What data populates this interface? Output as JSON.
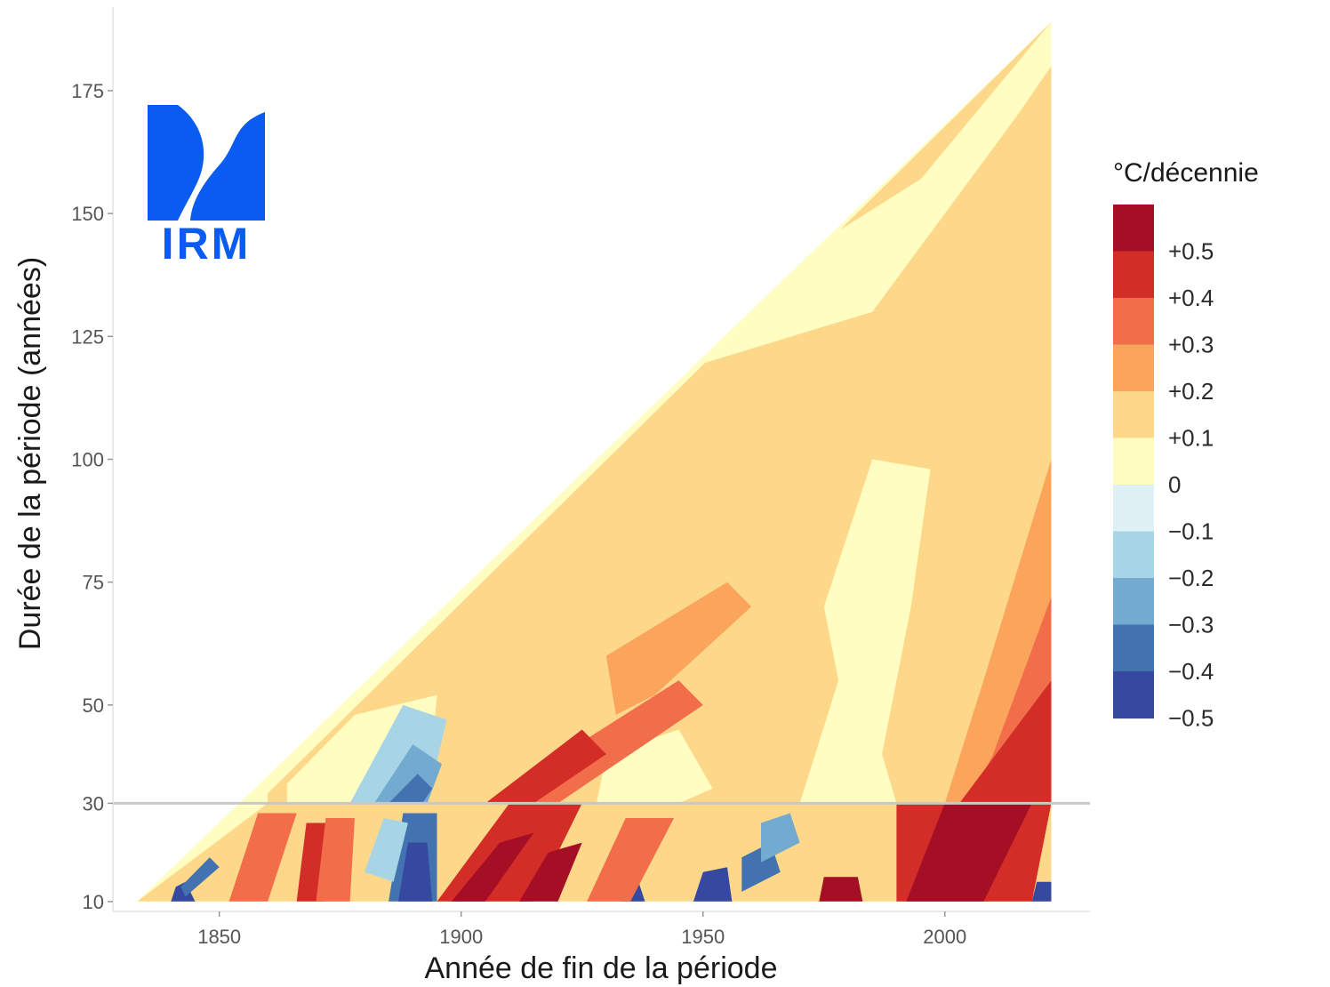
{
  "chart_data": {
    "type": "heatmap",
    "title": "",
    "xlabel": "Année de fin de la période",
    "ylabel": "Durée de la période (années)",
    "xlim": [
      1828,
      2030
    ],
    "ylim": [
      8,
      192
    ],
    "x_ticks": [
      1850,
      1900,
      1950,
      2000
    ],
    "y_ticks": [
      10,
      30,
      50,
      75,
      100,
      125,
      150,
      175
    ],
    "grid": false,
    "data_extent": {
      "first_start_year": 1833,
      "last_end_year": 2022,
      "min_duration": 10,
      "max_duration": 189
    },
    "reference_line": {
      "duration": 30,
      "color": "#c8c8c8"
    },
    "logo": {
      "text": "IRM",
      "color": "#0a5cf0",
      "placement": "top-left"
    },
    "legend": {
      "title": "°C/décennie",
      "placement": "right",
      "labels": [
        "+0.5",
        "+0.4",
        "+0.3",
        "+0.2",
        "+0.1",
        "0",
        "−0.1",
        "−0.2",
        "−0.3",
        "−0.4",
        "−0.5"
      ],
      "colors": [
        "#a50f26",
        "#d32d27",
        "#f26d4a",
        "#fba45c",
        "#fed88a",
        "#fffdc2",
        "#dff1f5",
        "#a7d5e5",
        "#73aacf",
        "#4372b1",
        "#3549a0"
      ]
    },
    "bands": [
      {
        "class": 4,
        "coords": [
          [
            1860,
            32
          ],
          [
            2022,
            189
          ],
          [
            2022,
            30
          ],
          [
            1860,
            30
          ]
        ]
      },
      {
        "class": 5,
        "coords": [
          [
            1935,
            115
          ],
          [
            1985,
            130
          ],
          [
            2015,
            170
          ],
          [
            2022,
            180
          ],
          [
            2022,
            189
          ],
          [
            1995,
            157
          ],
          [
            1940,
            123
          ]
        ]
      },
      {
        "class": 5,
        "coords": [
          [
            1985,
            100
          ],
          [
            1997,
            98
          ],
          [
            1993,
            70
          ],
          [
            1987,
            40
          ],
          [
            1990,
            30
          ],
          [
            1970,
            30
          ],
          [
            1978,
            55
          ],
          [
            1975,
            70
          ]
        ]
      },
      {
        "class": 5,
        "coords": [
          [
            1930,
            40
          ],
          [
            1945,
            45
          ],
          [
            1952,
            33
          ],
          [
            1945,
            30
          ],
          [
            1928,
            30
          ]
        ]
      },
      {
        "class": 5,
        "coords": [
          [
            1864,
            34
          ],
          [
            1878,
            48
          ],
          [
            1895,
            52
          ],
          [
            1893,
            30
          ],
          [
            1864,
            30
          ]
        ]
      },
      {
        "class": 3,
        "coords": [
          [
            1930,
            60
          ],
          [
            1955,
            75
          ],
          [
            1960,
            70
          ],
          [
            1940,
            52
          ],
          [
            1932,
            48
          ]
        ]
      },
      {
        "class": 3,
        "coords": [
          [
            2008,
            55
          ],
          [
            2022,
            100
          ],
          [
            2022,
            30
          ],
          [
            2000,
            30
          ]
        ]
      },
      {
        "class": 2,
        "coords": [
          [
            2010,
            40
          ],
          [
            2022,
            72
          ],
          [
            2022,
            30
          ],
          [
            2005,
            30
          ]
        ]
      },
      {
        "class": 2,
        "coords": [
          [
            1905,
            30
          ],
          [
            1945,
            55
          ],
          [
            1950,
            50
          ],
          [
            1920,
            30
          ]
        ]
      },
      {
        "class": 1,
        "coords": [
          [
            2003,
            30
          ],
          [
            2022,
            55
          ],
          [
            2022,
            30
          ]
        ]
      },
      {
        "class": 1,
        "coords": [
          [
            1905,
            30
          ],
          [
            1925,
            45
          ],
          [
            1930,
            40
          ],
          [
            1915,
            30
          ]
        ]
      },
      {
        "class": 7,
        "coords": [
          [
            1877,
            30
          ],
          [
            1888,
            50
          ],
          [
            1897,
            47
          ],
          [
            1893,
            30
          ]
        ]
      },
      {
        "class": 8,
        "coords": [
          [
            1882,
            30
          ],
          [
            1890,
            42
          ],
          [
            1896,
            38
          ],
          [
            1893,
            30
          ]
        ]
      },
      {
        "class": 9,
        "coords": [
          [
            1885,
            30
          ],
          [
            1891,
            36
          ],
          [
            1894,
            33
          ],
          [
            1892,
            30
          ]
        ]
      },
      {
        "class": 6,
        "coords": [
          [
            1925,
            30
          ],
          [
            1942,
            30
          ],
          [
            1935,
            20
          ],
          [
            1930,
            16
          ]
        ]
      },
      {
        "class": 6,
        "coords": [
          [
            1968,
            30
          ],
          [
            1985,
            30
          ],
          [
            1980,
            18
          ],
          [
            1975,
            16
          ]
        ]
      },
      {
        "class": 4,
        "coords": [
          [
            1833,
            10
          ],
          [
            2022,
            10
          ],
          [
            2022,
            30
          ],
          [
            1860,
            30
          ]
        ]
      },
      {
        "class": 1,
        "coords": [
          [
            1895,
            10
          ],
          [
            1915,
            10
          ],
          [
            1925,
            30
          ],
          [
            1910,
            30
          ]
        ]
      },
      {
        "class": 0,
        "coords": [
          [
            1898,
            10
          ],
          [
            1905,
            10
          ],
          [
            1915,
            24
          ],
          [
            1908,
            22
          ]
        ]
      },
      {
        "class": 0,
        "coords": [
          [
            1912,
            10
          ],
          [
            1920,
            10
          ],
          [
            1925,
            22
          ],
          [
            1918,
            20
          ]
        ]
      },
      {
        "class": 1,
        "coords": [
          [
            1990,
            10
          ],
          [
            2018,
            10
          ],
          [
            2022,
            30
          ],
          [
            1990,
            30
          ]
        ]
      },
      {
        "class": 0,
        "coords": [
          [
            1992,
            10
          ],
          [
            2008,
            10
          ],
          [
            2018,
            30
          ],
          [
            2000,
            30
          ]
        ]
      },
      {
        "class": 9,
        "coords": [
          [
            1885,
            10
          ],
          [
            1895,
            10
          ],
          [
            1895,
            28
          ],
          [
            1888,
            28
          ]
        ]
      },
      {
        "class": 10,
        "coords": [
          [
            1887,
            10
          ],
          [
            1894,
            10
          ],
          [
            1893,
            22
          ],
          [
            1889,
            22
          ]
        ]
      },
      {
        "class": 7,
        "coords": [
          [
            1880,
            16
          ],
          [
            1886,
            14
          ],
          [
            1889,
            26
          ],
          [
            1884,
            27
          ]
        ]
      },
      {
        "class": 10,
        "coords": [
          [
            1948,
            10
          ],
          [
            1956,
            10
          ],
          [
            1955,
            17
          ],
          [
            1950,
            16
          ]
        ]
      },
      {
        "class": 9,
        "coords": [
          [
            1958,
            12
          ],
          [
            1966,
            16
          ],
          [
            1964,
            22
          ],
          [
            1958,
            19
          ]
        ]
      },
      {
        "class": 8,
        "coords": [
          [
            1962,
            18
          ],
          [
            1970,
            22
          ],
          [
            1968,
            28
          ],
          [
            1962,
            26
          ]
        ]
      },
      {
        "class": 10,
        "coords": [
          [
            1933,
            10
          ],
          [
            1938,
            10
          ],
          [
            1936,
            16
          ],
          [
            1934,
            15
          ]
        ]
      },
      {
        "class": 10,
        "coords": [
          [
            1840,
            10
          ],
          [
            1845,
            10
          ],
          [
            1843,
            14
          ],
          [
            1841,
            13
          ]
        ]
      },
      {
        "class": 9,
        "coords": [
          [
            1843,
            11
          ],
          [
            1850,
            17
          ],
          [
            1848,
            19
          ],
          [
            1842,
            13
          ]
        ]
      },
      {
        "class": 2,
        "coords": [
          [
            1852,
            10
          ],
          [
            1860,
            10
          ],
          [
            1866,
            28
          ],
          [
            1858,
            28
          ]
        ]
      },
      {
        "class": 1,
        "coords": [
          [
            1866,
            10
          ],
          [
            1872,
            10
          ],
          [
            1874,
            26
          ],
          [
            1868,
            26
          ]
        ]
      },
      {
        "class": 2,
        "coords": [
          [
            1870,
            10
          ],
          [
            1877,
            10
          ],
          [
            1878,
            27
          ],
          [
            1872,
            27
          ]
        ]
      },
      {
        "class": 0,
        "coords": [
          [
            1974,
            10
          ],
          [
            1983,
            10
          ],
          [
            1982,
            15
          ],
          [
            1975,
            15
          ]
        ]
      },
      {
        "class": 10,
        "coords": [
          [
            2018,
            10
          ],
          [
            2022,
            10
          ],
          [
            2022,
            14
          ],
          [
            2019,
            14
          ]
        ]
      },
      {
        "class": 2,
        "coords": [
          [
            1926,
            10
          ],
          [
            1935,
            10
          ],
          [
            1944,
            27
          ],
          [
            1934,
            27
          ]
        ]
      }
    ]
  }
}
